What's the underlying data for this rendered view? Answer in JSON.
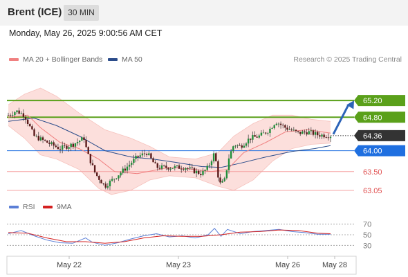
{
  "header": {
    "title": "Brent (ICE)",
    "timeframe": "30 MIN"
  },
  "timestamp": "Monday, May 26, 2025 9:00:56 AM CET",
  "legend": {
    "ma20": {
      "label": "MA 20 + Bollinger Bands",
      "color": "#f08080"
    },
    "ma50": {
      "label": "MA 50",
      "color": "#2b4c8a"
    }
  },
  "credit": "Research © 2025 Trading Central",
  "rsi_legend": {
    "rsi": {
      "label": "RSI",
      "color": "#5b7fd6"
    },
    "ma9": {
      "label": "9MA",
      "color": "#d42020"
    }
  },
  "chart_data": [
    {
      "type": "candlestick",
      "instrument": "Brent (ICE)",
      "timeframe": "30 MIN",
      "x_labels": [
        "May 22",
        "May 23",
        "May 26",
        "May 28"
      ],
      "ylim": [
        62.8,
        65.7
      ],
      "current_price": {
        "value": 64.36,
        "label": "64.36",
        "color": "#333333"
      },
      "target": {
        "value": 65.2,
        "from_value": 64.36
      },
      "levels": [
        {
          "value": 65.2,
          "label": "65.20",
          "kind": "resistance",
          "color": "#5aa01a"
        },
        {
          "value": 64.8,
          "label": "64.80",
          "kind": "resistance",
          "color": "#5aa01a"
        },
        {
          "value": 64.0,
          "label": "64.00",
          "kind": "pivot",
          "color": "#1f6fe0"
        },
        {
          "value": 63.5,
          "label": "63.50",
          "kind": "support",
          "color": "#f5a0a0"
        },
        {
          "value": 63.05,
          "label": "63.05",
          "kind": "support",
          "color": "#f5a0a0"
        }
      ],
      "path": [
        [
          0,
          64.85
        ],
        [
          0.025,
          64.95
        ],
        [
          0.05,
          64.85
        ],
        [
          0.08,
          64.35
        ],
        [
          0.12,
          64.2
        ],
        [
          0.16,
          64.05
        ],
        [
          0.2,
          64.15
        ],
        [
          0.235,
          64.3
        ],
        [
          0.245,
          63.95
        ],
        [
          0.27,
          63.45
        ],
        [
          0.3,
          63.15
        ],
        [
          0.33,
          63.35
        ],
        [
          0.36,
          63.55
        ],
        [
          0.4,
          63.85
        ],
        [
          0.43,
          63.95
        ],
        [
          0.46,
          63.6
        ],
        [
          0.5,
          63.6
        ],
        [
          0.55,
          63.6
        ],
        [
          0.58,
          63.5
        ],
        [
          0.6,
          63.45
        ],
        [
          0.62,
          63.6
        ],
        [
          0.64,
          63.95
        ],
        [
          0.655,
          63.2
        ],
        [
          0.67,
          63.25
        ],
        [
          0.685,
          63.85
        ],
        [
          0.7,
          64.15
        ],
        [
          0.72,
          64.1
        ],
        [
          0.75,
          64.3
        ],
        [
          0.78,
          64.35
        ],
        [
          0.81,
          64.5
        ],
        [
          0.83,
          64.7
        ],
        [
          0.86,
          64.55
        ],
        [
          0.9,
          64.42
        ],
        [
          0.93,
          64.45
        ],
        [
          0.96,
          64.38
        ],
        [
          1.0,
          64.36
        ]
      ],
      "ma20": [
        [
          0,
          64.8
        ],
        [
          0.06,
          64.85
        ],
        [
          0.1,
          64.55
        ],
        [
          0.16,
          64.2
        ],
        [
          0.22,
          64.05
        ],
        [
          0.28,
          63.8
        ],
        [
          0.33,
          63.5
        ],
        [
          0.4,
          63.45
        ],
        [
          0.5,
          63.6
        ],
        [
          0.58,
          63.55
        ],
        [
          0.63,
          63.5
        ],
        [
          0.68,
          63.55
        ],
        [
          0.73,
          63.95
        ],
        [
          0.8,
          64.2
        ],
        [
          0.86,
          64.45
        ],
        [
          0.93,
          64.5
        ],
        [
          1.0,
          64.42
        ]
      ],
      "ma50": [
        [
          0,
          64.7
        ],
        [
          0.08,
          64.78
        ],
        [
          0.15,
          64.6
        ],
        [
          0.22,
          64.35
        ],
        [
          0.3,
          64.0
        ],
        [
          0.38,
          63.85
        ],
        [
          0.45,
          63.8
        ],
        [
          0.52,
          63.72
        ],
        [
          0.6,
          63.62
        ],
        [
          0.66,
          63.6
        ],
        [
          0.72,
          63.7
        ],
        [
          0.8,
          63.85
        ],
        [
          0.88,
          63.98
        ],
        [
          0.95,
          64.05
        ],
        [
          1.0,
          64.12
        ]
      ],
      "bb_upper": [
        [
          0,
          65.1
        ],
        [
          0.05,
          65.35
        ],
        [
          0.1,
          65.5
        ],
        [
          0.15,
          65.3
        ],
        [
          0.22,
          64.9
        ],
        [
          0.3,
          64.5
        ],
        [
          0.38,
          64.3
        ],
        [
          0.44,
          64.1
        ],
        [
          0.5,
          63.85
        ],
        [
          0.58,
          63.8
        ],
        [
          0.65,
          63.95
        ],
        [
          0.7,
          64.35
        ],
        [
          0.76,
          64.65
        ],
        [
          0.82,
          64.85
        ],
        [
          0.88,
          64.85
        ],
        [
          0.94,
          64.75
        ],
        [
          1.0,
          64.7
        ]
      ],
      "bb_lower": [
        [
          0,
          64.6
        ],
        [
          0.05,
          64.3
        ],
        [
          0.1,
          63.9
        ],
        [
          0.15,
          63.8
        ],
        [
          0.22,
          63.55
        ],
        [
          0.28,
          63.1
        ],
        [
          0.32,
          62.95
        ],
        [
          0.38,
          63.05
        ],
        [
          0.44,
          63.3
        ],
        [
          0.5,
          63.4
        ],
        [
          0.58,
          63.35
        ],
        [
          0.65,
          63.15
        ],
        [
          0.7,
          63.05
        ],
        [
          0.76,
          63.3
        ],
        [
          0.82,
          63.75
        ],
        [
          0.88,
          64.05
        ],
        [
          0.94,
          64.15
        ],
        [
          1.0,
          64.18
        ]
      ]
    },
    {
      "type": "line",
      "title": "RSI",
      "ylim": [
        20,
        80
      ],
      "y_ticks": [
        70,
        50,
        30
      ],
      "series": [
        {
          "name": "RSI",
          "color": "#5b7fd6",
          "points": [
            [
              0,
              52
            ],
            [
              0.04,
              58
            ],
            [
              0.08,
              48
            ],
            [
              0.12,
              40
            ],
            [
              0.16,
              35
            ],
            [
              0.2,
              34
            ],
            [
              0.24,
              44
            ],
            [
              0.26,
              36
            ],
            [
              0.3,
              30
            ],
            [
              0.34,
              35
            ],
            [
              0.38,
              42
            ],
            [
              0.42,
              48
            ],
            [
              0.46,
              52
            ],
            [
              0.5,
              46
            ],
            [
              0.54,
              48
            ],
            [
              0.58,
              44
            ],
            [
              0.62,
              50
            ],
            [
              0.64,
              62
            ],
            [
              0.66,
              47
            ],
            [
              0.68,
              60
            ],
            [
              0.72,
              52
            ],
            [
              0.76,
              56
            ],
            [
              0.8,
              58
            ],
            [
              0.84,
              60
            ],
            [
              0.88,
              56
            ],
            [
              0.92,
              54
            ],
            [
              0.96,
              51
            ],
            [
              1.0,
              51
            ]
          ]
        },
        {
          "name": "9MA",
          "color": "#d42020",
          "points": [
            [
              0,
              54
            ],
            [
              0.06,
              53
            ],
            [
              0.12,
              44
            ],
            [
              0.18,
              37
            ],
            [
              0.24,
              37
            ],
            [
              0.3,
              34
            ],
            [
              0.36,
              37
            ],
            [
              0.42,
              44
            ],
            [
              0.48,
              48
            ],
            [
              0.54,
              47
            ],
            [
              0.6,
              47
            ],
            [
              0.66,
              50
            ],
            [
              0.72,
              55
            ],
            [
              0.78,
              56
            ],
            [
              0.84,
              59
            ],
            [
              0.9,
              58
            ],
            [
              0.96,
              53
            ],
            [
              1.0,
              52
            ]
          ]
        }
      ]
    }
  ]
}
